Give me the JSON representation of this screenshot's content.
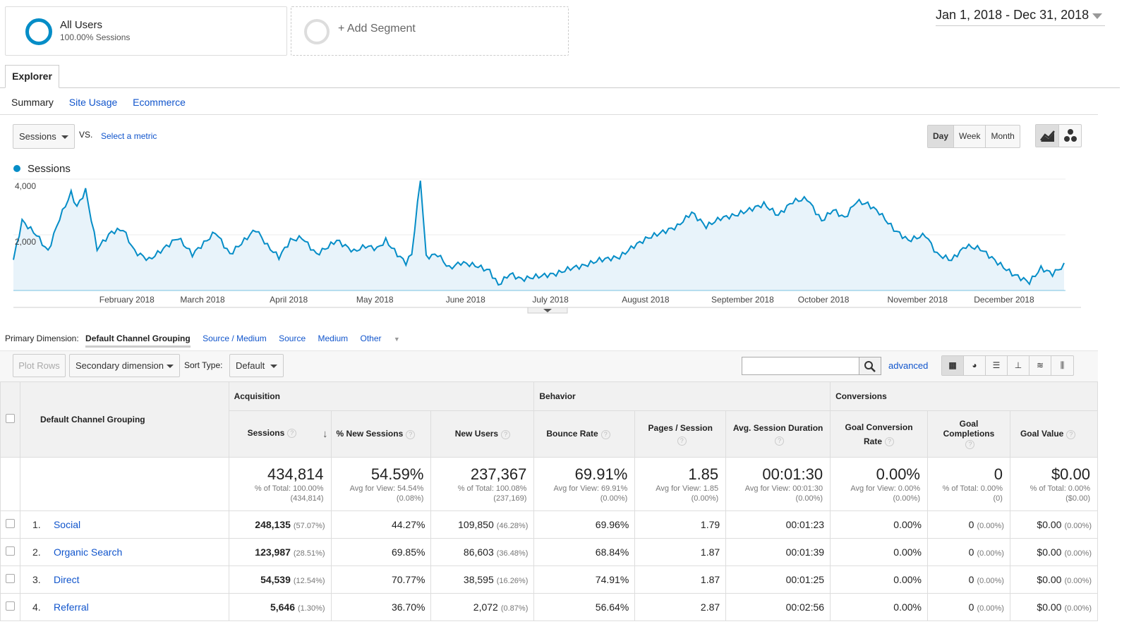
{
  "segments": {
    "primary": {
      "title": "All Users",
      "subtitle": "100.00% Sessions"
    },
    "add": "+ Add Segment"
  },
  "date_range": "Jan 1, 2018 - Dec 31, 2018",
  "tabs": {
    "explorer": "Explorer",
    "sub": [
      "Summary",
      "Site Usage",
      "Ecommerce"
    ]
  },
  "metric_select": {
    "value": "Sessions",
    "vs": "VS.",
    "select_metric": "Select a metric"
  },
  "granularity": [
    "Day",
    "Week",
    "Month"
  ],
  "legend": "Sessions",
  "colors": {
    "accent": "#058dc7",
    "link": "#1155cc"
  },
  "chart_data": {
    "type": "area",
    "series": [
      {
        "name": "Sessions"
      }
    ],
    "y_ticks": [
      "4,000",
      "2,000"
    ],
    "ylim": [
      0,
      4000
    ],
    "x_labels": [
      "February 2018",
      "March 2018",
      "April 2018",
      "May 2018",
      "June 2018",
      "July 2018",
      "August 2018",
      "September 2018",
      "October 2018",
      "November 2018",
      "December 2018"
    ],
    "anchors": [
      [
        0,
        1100
      ],
      [
        3,
        2500
      ],
      [
        8,
        2000
      ],
      [
        12,
        1400
      ],
      [
        16,
        2600
      ],
      [
        20,
        3500
      ],
      [
        22,
        3000
      ],
      [
        25,
        3600
      ],
      [
        29,
        1500
      ],
      [
        34,
        2100
      ],
      [
        38,
        2200
      ],
      [
        42,
        1400
      ],
      [
        47,
        1100
      ],
      [
        52,
        1500
      ],
      [
        57,
        1900
      ],
      [
        62,
        1300
      ],
      [
        66,
        1700
      ],
      [
        70,
        2100
      ],
      [
        75,
        1300
      ],
      [
        79,
        1700
      ],
      [
        84,
        2200
      ],
      [
        88,
        1600
      ],
      [
        92,
        1200
      ],
      [
        96,
        1800
      ],
      [
        100,
        1900
      ],
      [
        105,
        1300
      ],
      [
        108,
        1500
      ],
      [
        112,
        1800
      ],
      [
        118,
        1400
      ],
      [
        122,
        1600
      ],
      [
        126,
        1500
      ],
      [
        129,
        1800
      ],
      [
        133,
        1300
      ],
      [
        136,
        1000
      ],
      [
        138,
        1300
      ],
      [
        141,
        4000
      ],
      [
        143,
        1200
      ],
      [
        147,
        1300
      ],
      [
        151,
        800
      ],
      [
        155,
        1000
      ],
      [
        160,
        900
      ],
      [
        165,
        700
      ],
      [
        168,
        200
      ],
      [
        172,
        600
      ],
      [
        176,
        400
      ],
      [
        181,
        500
      ],
      [
        188,
        600
      ],
      [
        193,
        800
      ],
      [
        198,
        900
      ],
      [
        203,
        1100
      ],
      [
        210,
        1200
      ],
      [
        215,
        1600
      ],
      [
        220,
        1900
      ],
      [
        225,
        2100
      ],
      [
        230,
        2300
      ],
      [
        235,
        2800
      ],
      [
        240,
        2300
      ],
      [
        245,
        2600
      ],
      [
        250,
        2700
      ],
      [
        255,
        2900
      ],
      [
        260,
        3100
      ],
      [
        265,
        2700
      ],
      [
        270,
        3200
      ],
      [
        275,
        3300
      ],
      [
        280,
        2500
      ],
      [
        284,
        2900
      ],
      [
        288,
        2600
      ],
      [
        292,
        3200
      ],
      [
        296,
        3100
      ],
      [
        300,
        2800
      ],
      [
        305,
        2200
      ],
      [
        310,
        1800
      ],
      [
        316,
        2000
      ],
      [
        320,
        1300
      ],
      [
        325,
        1100
      ],
      [
        330,
        1600
      ],
      [
        335,
        1500
      ],
      [
        341,
        1000
      ],
      [
        346,
        600
      ],
      [
        352,
        300
      ],
      [
        356,
        800
      ],
      [
        360,
        600
      ],
      [
        364,
        900
      ]
    ]
  },
  "dimensions": {
    "label": "Primary Dimension:",
    "active": "Default Channel Grouping",
    "others": [
      "Source / Medium",
      "Source",
      "Medium",
      "Other"
    ]
  },
  "toolbar": {
    "plot_rows": "Plot Rows",
    "secondary": "Secondary dimension",
    "sort_type": "Sort Type:",
    "sort_value": "Default",
    "advanced": "advanced"
  },
  "table": {
    "group_headers": [
      "Acquisition",
      "Behavior",
      "Conversions"
    ],
    "dim_header": "Default Channel Grouping",
    "columns": [
      "Sessions",
      "% New Sessions",
      "New Users",
      "Bounce Rate",
      "Pages / Session",
      "Avg. Session Duration",
      "Goal Conversion Rate",
      "Goal Completions",
      "Goal Value"
    ],
    "totals": [
      {
        "big": "434,814",
        "l1": "% of Total: 100.00%",
        "l2": "(434,814)"
      },
      {
        "big": "54.59%",
        "l1": "Avg for View: 54.54%",
        "l2": "(0.08%)"
      },
      {
        "big": "237,367",
        "l1": "% of Total: 100.08%",
        "l2": "(237,169)"
      },
      {
        "big": "69.91%",
        "l1": "Avg for View: 69.91%",
        "l2": "(0.00%)"
      },
      {
        "big": "1.85",
        "l1": "Avg for View: 1.85",
        "l2": "(0.00%)"
      },
      {
        "big": "00:01:30",
        "l1": "Avg for View: 00:01:30",
        "l2": "(0.00%)"
      },
      {
        "big": "0.00%",
        "l1": "Avg for View: 0.00%",
        "l2": "(0.00%)"
      },
      {
        "big": "0",
        "l1": "% of Total: 0.00%",
        "l2": "(0)"
      },
      {
        "big": "$0.00",
        "l1": "% of Total: 0.00%",
        "l2": "($0.00)"
      }
    ],
    "rows": [
      {
        "num": "1.",
        "name": "Social",
        "sessions": "248,135",
        "sessions_pct": "(57.07%)",
        "new_sessions": "44.27%",
        "new_users": "109,850",
        "new_users_pct": "(46.28%)",
        "bounce": "69.96%",
        "pages": "1.79",
        "duration": "00:01:23",
        "conv": "0.00%",
        "goals": "0",
        "goals_pct": "(0.00%)",
        "value": "$0.00",
        "value_pct": "(0.00%)"
      },
      {
        "num": "2.",
        "name": "Organic Search",
        "sessions": "123,987",
        "sessions_pct": "(28.51%)",
        "new_sessions": "69.85%",
        "new_users": "86,603",
        "new_users_pct": "(36.48%)",
        "bounce": "68.84%",
        "pages": "1.87",
        "duration": "00:01:39",
        "conv": "0.00%",
        "goals": "0",
        "goals_pct": "(0.00%)",
        "value": "$0.00",
        "value_pct": "(0.00%)"
      },
      {
        "num": "3.",
        "name": "Direct",
        "sessions": "54,539",
        "sessions_pct": "(12.54%)",
        "new_sessions": "70.77%",
        "new_users": "38,595",
        "new_users_pct": "(16.26%)",
        "bounce": "74.91%",
        "pages": "1.87",
        "duration": "00:01:25",
        "conv": "0.00%",
        "goals": "0",
        "goals_pct": "(0.00%)",
        "value": "$0.00",
        "value_pct": "(0.00%)"
      },
      {
        "num": "4.",
        "name": "Referral",
        "sessions": "5,646",
        "sessions_pct": "(1.30%)",
        "new_sessions": "36.70%",
        "new_users": "2,072",
        "new_users_pct": "(0.87%)",
        "bounce": "56.64%",
        "pages": "2.87",
        "duration": "00:02:56",
        "conv": "0.00%",
        "goals": "0",
        "goals_pct": "(0.00%)",
        "value": "$0.00",
        "value_pct": "(0.00%)"
      }
    ]
  }
}
